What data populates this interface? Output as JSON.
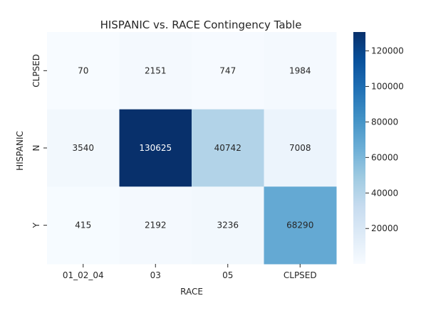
{
  "chart_data": {
    "type": "heatmap",
    "title": "HISPANIC vs. RACE Contingency Table",
    "xlabel": "RACE",
    "ylabel": "HISPANIC",
    "x_categories": [
      "01_02_04",
      "03",
      "05",
      "CLPSED"
    ],
    "y_categories": [
      "CLPSED",
      "N",
      "Y"
    ],
    "values": [
      [
        70,
        2151,
        747,
        1984
      ],
      [
        3540,
        130625,
        40742,
        7008
      ],
      [
        415,
        2192,
        3236,
        68290
      ]
    ],
    "colormap": "Blues",
    "color_min": 70,
    "color_max": 130625,
    "colorbar_ticks": [
      "20000",
      "40000",
      "60000",
      "80000",
      "100000",
      "120000"
    ],
    "colorbar_tick_values": [
      20000,
      40000,
      60000,
      80000,
      100000,
      120000
    ],
    "annotation_dark_color": "#262626",
    "annotation_light_color": "#ffffff"
  }
}
